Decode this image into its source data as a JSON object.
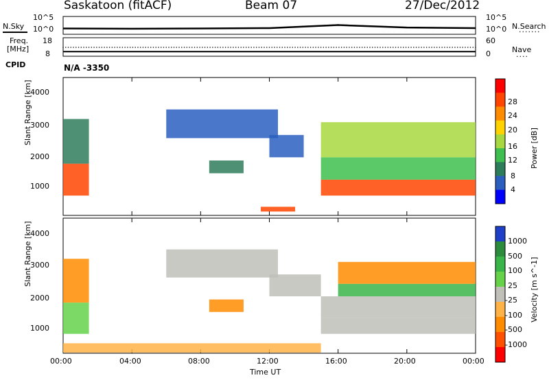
{
  "header": {
    "station": "Saskatoon (fitACF)",
    "beam": "Beam 07",
    "date": "27/Dec/2012"
  },
  "noise_panel": {
    "left_label": "N.Sky",
    "right_label": "N.Search",
    "right_dots": "·······",
    "left_ticks": [
      "10^5",
      "10^0"
    ],
    "right_ticks": [
      "10^5",
      "10^0"
    ]
  },
  "freq_panel": {
    "left_label_1": "Freq.",
    "left_label_2": "[MHz]",
    "right_label": "Nave",
    "right_dots": "····",
    "left_ticks": [
      "18",
      "8"
    ],
    "right_ticks": [
      "60",
      "0"
    ]
  },
  "cpid": {
    "label": "CPID",
    "value": "N/A -3350"
  },
  "power_panel": {
    "ylabel": "Slant Range [km]",
    "yticks": [
      "4000",
      "3000",
      "2000",
      "1000"
    ],
    "colorbar_label": "Power [dB]",
    "colorbar_ticks": [
      "28",
      "24",
      "20",
      "16",
      "12",
      "8",
      "4"
    ],
    "colorbar_colors": [
      "#ff0000",
      "#ff4500",
      "#ff8c00",
      "#ffd200",
      "#a8d840",
      "#3fbf4f",
      "#2e7d5a",
      "#2a5fbf",
      "#0000ff"
    ]
  },
  "velocity_panel": {
    "ylabel": "Slant Range [km]",
    "yticks": [
      "4000",
      "3000",
      "2000",
      "1000"
    ],
    "colorbar_label": "Velocity [m s^-1]",
    "colorbar_ticks": [
      "1000",
      "500",
      "100",
      "25",
      "-25",
      "-100",
      "-500",
      "-1000"
    ],
    "colorbar_colors": [
      "#1e40c8",
      "#2a8c3c",
      "#39b54a",
      "#66d24a",
      "#c0c0b8",
      "#ffb347",
      "#ff8c00",
      "#ff5000",
      "#ff0000"
    ]
  },
  "x_axis": {
    "label": "Time UT",
    "ticks": [
      "00:00",
      "04:00",
      "08:00",
      "12:00",
      "16:00",
      "20:00",
      "00:00"
    ]
  },
  "chart_data": [
    {
      "type": "line",
      "title": "Saskatoon (fitACF) Beam 07 27/Dec/2012",
      "xlabel": "Time UT",
      "series": [
        {
          "name": "N.Sky",
          "x": [
            "00:00",
            "04:00",
            "08:00",
            "12:00",
            "16:00",
            "20:00",
            "24:00"
          ],
          "values": [
            30,
            25,
            30,
            40,
            400,
            60,
            40
          ]
        },
        {
          "name": "N.Search",
          "x": [
            "00:00",
            "04:00",
            "08:00",
            "12:00",
            "16:00",
            "20:00",
            "24:00"
          ],
          "values": [
            30,
            25,
            30,
            40,
            500,
            60,
            40
          ]
        }
      ],
      "ylim": [
        1,
        100000
      ],
      "log_scale": true
    },
    {
      "type": "scatter",
      "series": [
        {
          "name": "Freq.",
          "x": [
            "00:00",
            "12:00",
            "24:00"
          ],
          "values": [
            10.5,
            10.5,
            10.5
          ]
        },
        {
          "name": "Nave",
          "x": [
            "00:00",
            "12:00",
            "24:00"
          ],
          "values": [
            30,
            30,
            30
          ]
        }
      ],
      "ylim": [
        8,
        18
      ]
    },
    {
      "type": "heatmap",
      "quantity": "Power",
      "unit": "dB",
      "xlabel": "Time UT",
      "ylabel": "Slant Range [km]",
      "xlim": [
        "00:00",
        "24:00"
      ],
      "ylim": [
        180,
        4500
      ],
      "clim": [
        0,
        30
      ],
      "regions": [
        {
          "t0": 0.0,
          "t1": 1.5,
          "r0": 800,
          "r1": 1800,
          "value": 26
        },
        {
          "t0": 0.0,
          "t1": 1.5,
          "r0": 1800,
          "r1": 3200,
          "value": 10
        },
        {
          "t0": 6.0,
          "t1": 12.5,
          "r0": 2600,
          "r1": 3500,
          "value": 6
        },
        {
          "t0": 8.5,
          "t1": 10.5,
          "r0": 1500,
          "r1": 1900,
          "value": 10
        },
        {
          "t0": 12.0,
          "t1": 14.0,
          "r0": 2000,
          "r1": 2700,
          "value": 6
        },
        {
          "t0": 11.5,
          "t1": 13.5,
          "r0": 300,
          "r1": 450,
          "value": 26
        },
        {
          "t0": 15.0,
          "t1": 24.0,
          "r0": 800,
          "r1": 1300,
          "value": 26
        },
        {
          "t0": 15.0,
          "t1": 24.0,
          "r0": 1300,
          "r1": 2000,
          "value": 12
        },
        {
          "t0": 15.0,
          "t1": 24.0,
          "r0": 2000,
          "r1": 3100,
          "value": 14
        }
      ]
    },
    {
      "type": "heatmap",
      "quantity": "Velocity",
      "unit": "m s^-1",
      "xlabel": "Time UT",
      "ylabel": "Slant Range [km]",
      "xlim": [
        "00:00",
        "24:00"
      ],
      "ylim": [
        180,
        4500
      ],
      "clim": [
        -1000,
        1000
      ],
      "regions": [
        {
          "t0": 0.0,
          "t1": 1.5,
          "r0": 800,
          "r1": 1800,
          "value": 40
        },
        {
          "t0": 0.0,
          "t1": 1.5,
          "r0": 1800,
          "r1": 3200,
          "value": -150
        },
        {
          "t0": 6.0,
          "t1": 12.5,
          "r0": 2600,
          "r1": 3500,
          "value": 0
        },
        {
          "t0": 8.5,
          "t1": 10.5,
          "r0": 1500,
          "r1": 1900,
          "value": -150
        },
        {
          "t0": 12.0,
          "t1": 15.0,
          "r0": 2000,
          "r1": 2700,
          "value": 0
        },
        {
          "t0": 0.0,
          "t1": 15.0,
          "r0": 200,
          "r1": 500,
          "value": -80
        },
        {
          "t0": 15.0,
          "t1": 24.0,
          "r0": 800,
          "r1": 1300,
          "value": 0
        },
        {
          "t0": 15.0,
          "t1": 24.0,
          "r0": 1300,
          "r1": 2000,
          "value": 0
        },
        {
          "t0": 16.0,
          "t1": 24.0,
          "r0": 2000,
          "r1": 2400,
          "value": 200
        },
        {
          "t0": 16.0,
          "t1": 24.0,
          "r0": 2400,
          "r1": 3100,
          "value": -200
        }
      ]
    }
  ]
}
